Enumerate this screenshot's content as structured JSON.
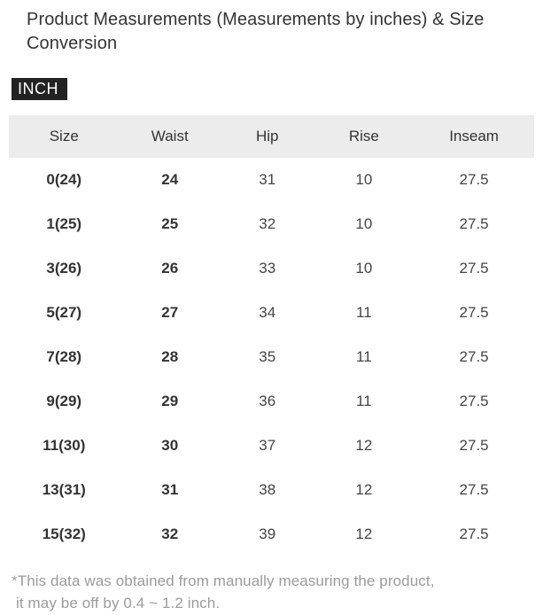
{
  "page": {
    "title": "Product Measurements (Measurements by inches) & Size Conversion",
    "unit_badge": "INCH"
  },
  "table": {
    "headers": [
      "Size",
      "Waist",
      "Hip",
      "Rise",
      "Inseam"
    ],
    "rows": [
      {
        "size": "0(24)",
        "waist": "24",
        "hip": "31",
        "rise": "10",
        "inseam": "27.5"
      },
      {
        "size": "1(25)",
        "waist": "25",
        "hip": "32",
        "rise": "10",
        "inseam": "27.5"
      },
      {
        "size": "3(26)",
        "waist": "26",
        "hip": "33",
        "rise": "10",
        "inseam": "27.5"
      },
      {
        "size": "5(27)",
        "waist": "27",
        "hip": "34",
        "rise": "11",
        "inseam": "27.5"
      },
      {
        "size": "7(28)",
        "waist": "28",
        "hip": "35",
        "rise": "11",
        "inseam": "27.5"
      },
      {
        "size": "9(29)",
        "waist": "29",
        "hip": "36",
        "rise": "11",
        "inseam": "27.5"
      },
      {
        "size": "11(30)",
        "waist": "30",
        "hip": "37",
        "rise": "12",
        "inseam": "27.5"
      },
      {
        "size": "13(31)",
        "waist": "31",
        "hip": "38",
        "rise": "12",
        "inseam": "27.5"
      },
      {
        "size": "15(32)",
        "waist": "32",
        "hip": "39",
        "rise": "12",
        "inseam": "27.5"
      }
    ]
  },
  "footnote": {
    "line1": "*This data was obtained from manually measuring the product,",
    "line2": "it may be off by 0.4 ~ 1.2 inch."
  },
  "colors": {
    "badge_background": "#222222",
    "badge_text": "#ffffff",
    "header_background": "#ececec",
    "title_text": "#333333",
    "cell_text": "#444444",
    "footnote_text": "#9b9b9b"
  }
}
